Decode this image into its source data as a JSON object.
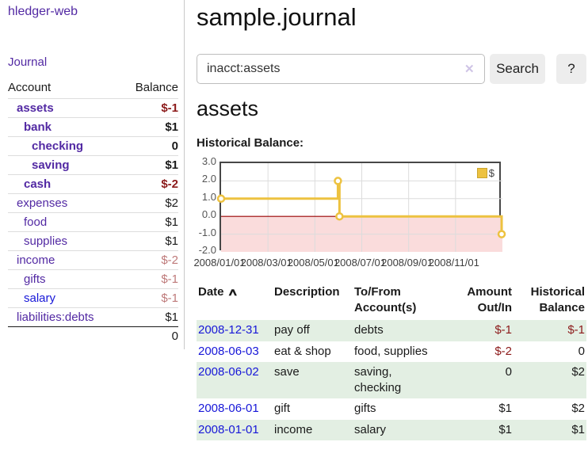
{
  "app": {
    "title": "hledger-web"
  },
  "sidebar": {
    "journal_link": "Journal",
    "accounts": {
      "header": {
        "account": "Account",
        "balance": "Balance"
      },
      "rows": [
        {
          "name": "assets",
          "balance": "$-1"
        },
        {
          "name": "bank",
          "balance": "$1"
        },
        {
          "name": "checking",
          "balance": "0"
        },
        {
          "name": "saving",
          "balance": "$1"
        },
        {
          "name": "cash",
          "balance": "$-2"
        },
        {
          "name": "expenses",
          "balance": "$2"
        },
        {
          "name": "food",
          "balance": "$1"
        },
        {
          "name": "supplies",
          "balance": "$1"
        },
        {
          "name": "income",
          "balance": "$-2"
        },
        {
          "name": "gifts",
          "balance": "$-1"
        },
        {
          "name": "salary",
          "balance": "$-1"
        },
        {
          "name": "liabilities:debts",
          "balance": "$1"
        }
      ],
      "total": "0"
    }
  },
  "main": {
    "title": "sample.journal",
    "search": {
      "value": "inacct:assets",
      "clear_icon": "✕",
      "button": "Search",
      "help": "?"
    },
    "register": {
      "heading": "assets",
      "chart_title": "Historical Balance:"
    }
  },
  "chart_data": {
    "type": "line",
    "step": true,
    "title": "Historical Balance:",
    "series": [
      {
        "name": "$",
        "points": [
          [
            "2008-01-01",
            1
          ],
          [
            "2008-06-01",
            2
          ],
          [
            "2008-06-03",
            0
          ],
          [
            "2008-12-31",
            -1
          ]
        ]
      }
    ],
    "xlim": [
      "2008-01-01",
      "2009-01-01"
    ],
    "ylim": [
      -2,
      3
    ],
    "y_ticks": [
      "3.0",
      "2.0",
      "1.0",
      "0.0",
      "-1.0",
      "-2.0"
    ],
    "x_tick_labels": [
      "2008/01/01",
      "2008/03/01",
      "2008/05/01",
      "2008/07/01",
      "2008/09/01",
      "2008/11/01"
    ],
    "legend": {
      "position": "top-right",
      "label": "$"
    },
    "grid": true,
    "colors": {
      "line": "#edc240",
      "marker_fill": "#ffffff",
      "negative_fill": "#fadcdc",
      "zero_line": "#990000",
      "grid": "#dcdcdc",
      "border": "#474747"
    }
  },
  "table": {
    "sort_icon": "∧",
    "headers": {
      "date": "Date",
      "description": "Description",
      "tofrom": "To/From\nAccount(s)",
      "amount": "Amount\nOut/In",
      "balance": "Historical\nBalance"
    },
    "rows": [
      {
        "date": "2008-12-31",
        "description": "pay off",
        "tofrom": "debts",
        "amount": "$-1",
        "balance": "$-1"
      },
      {
        "date": "2008-06-03",
        "description": "eat & shop",
        "tofrom": "food, supplies",
        "amount": "$-2",
        "balance": "0"
      },
      {
        "date": "2008-06-02",
        "description": "save",
        "tofrom": "saving,\nchecking",
        "amount": "0",
        "balance": "$2"
      },
      {
        "date": "2008-06-01",
        "description": "gift",
        "tofrom": "gifts",
        "amount": "$1",
        "balance": "$2"
      },
      {
        "date": "2008-01-01",
        "description": "income",
        "tofrom": "salary",
        "amount": "$1",
        "balance": "$1"
      }
    ]
  }
}
